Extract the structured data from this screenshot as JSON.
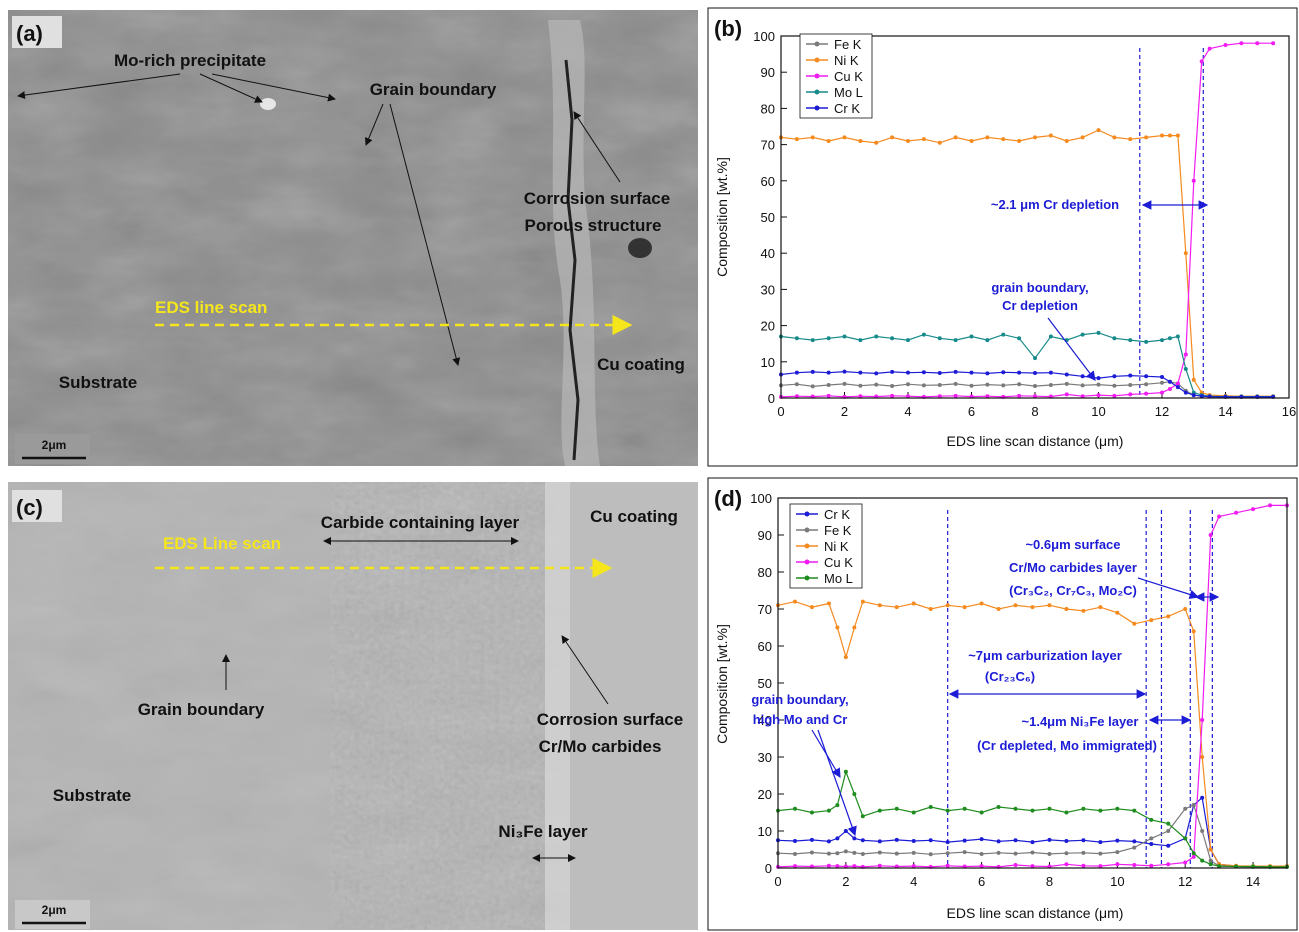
{
  "images": [
    {
      "label": "(a)",
      "annotations": [
        "Mo-rich precipitate",
        "Grain boundary",
        "Corrosion surface",
        "Porous structure",
        "EDS line scan",
        "Cu coating",
        "Substrate"
      ],
      "scale_bar": "2μm"
    },
    {
      "label": "(c)",
      "annotations": [
        "Carbide containing layer",
        "Cu coating",
        "EDS Line scan",
        "Grain boundary",
        "Corrosion surface",
        "Cr/Mo carbides",
        "Substrate",
        "Ni₃Fe layer"
      ],
      "scale_bar": "2μm"
    }
  ],
  "chart_data": [
    {
      "type": "line",
      "panel": "(b)",
      "x_label": "EDS line scan distance (μm)",
      "y_label": "Composition [wt.%]",
      "xlim": [
        0,
        16
      ],
      "xticks": [
        0,
        2,
        4,
        6,
        8,
        10,
        12,
        14,
        16
      ],
      "ylim": [
        0,
        100
      ],
      "yticks": [
        0,
        10,
        20,
        30,
        40,
        50,
        60,
        70,
        80,
        90,
        100
      ],
      "vlines": [
        11.3,
        13.3
      ],
      "annotations": [
        "~2.1 μm Cr depletion",
        "grain boundary,",
        "Cr depletion"
      ],
      "x": [
        0,
        0.5,
        1,
        1.5,
        2,
        2.5,
        3,
        3.5,
        4,
        4.5,
        5,
        5.5,
        6,
        6.5,
        7,
        7.5,
        8,
        8.5,
        9,
        9.5,
        10,
        10.5,
        11,
        11.5,
        12,
        12.25,
        12.5,
        12.75,
        13,
        13.25,
        13.5,
        14,
        14.5,
        15,
        15.5
      ],
      "series": [
        {
          "name": "Fe K",
          "color": "#7a7a7a",
          "values": [
            3.5,
            3.8,
            3.2,
            3.6,
            3.9,
            3.4,
            3.7,
            3.3,
            3.8,
            3.5,
            3.6,
            3.9,
            3.4,
            3.7,
            3.5,
            3.8,
            3.3,
            3.6,
            3.9,
            3.5,
            3.7,
            3.4,
            3.6,
            3.8,
            4.2,
            4.5,
            4,
            2,
            0.8,
            0.5,
            0.4,
            0.3,
            0.3,
            0.3,
            0.3
          ]
        },
        {
          "name": "Ni K",
          "color": "#f58a1f",
          "values": [
            72,
            71.5,
            72,
            71,
            72,
            71,
            70.5,
            72,
            71,
            71.5,
            70.5,
            72,
            71,
            72,
            71.5,
            71,
            72,
            72.5,
            71,
            72,
            74,
            72,
            71.5,
            72,
            72.5,
            72.5,
            72.5,
            40,
            5,
            1.5,
            0.8,
            0.6,
            0.5,
            0.5,
            0.5
          ]
        },
        {
          "name": "Cu K",
          "color": "#f21cf2",
          "values": [
            0.3,
            0.5,
            0.4,
            0.6,
            0.3,
            0.5,
            0.4,
            0.6,
            0.5,
            0.3,
            0.5,
            0.6,
            0.4,
            0.5,
            0.3,
            0.6,
            0.5,
            0.4,
            1,
            0.5,
            0.8,
            0.6,
            1,
            1.2,
            1.5,
            2.5,
            4,
            12,
            60,
            93,
            96.5,
            97.5,
            98,
            98,
            98
          ]
        },
        {
          "name": "Mo L",
          "color": "#178a8a",
          "values": [
            17,
            16.5,
            16,
            16.5,
            17,
            16,
            17,
            16.5,
            16,
            17.5,
            16.5,
            16,
            17,
            16,
            17.5,
            16.5,
            11,
            17,
            16,
            17.5,
            18,
            16.5,
            16,
            15.5,
            16,
            16.5,
            17,
            8,
            1.5,
            0.8,
            0.5,
            0.4,
            0.4,
            0.4,
            0.4
          ]
        },
        {
          "name": "Cr K",
          "color": "#1c1cd6",
          "values": [
            6.5,
            7,
            7.2,
            7,
            7.3,
            7,
            6.8,
            7.2,
            7,
            7.1,
            6.9,
            7.2,
            7,
            6.8,
            7.1,
            7,
            6.9,
            7,
            6.5,
            6,
            5.5,
            6,
            6.2,
            6,
            5.8,
            4.5,
            3,
            1.5,
            0.8,
            0.5,
            0.4,
            0.3,
            0.3,
            0.3,
            0.3
          ]
        }
      ]
    },
    {
      "type": "line",
      "panel": "(d)",
      "x_label": "EDS line scan distance (μm)",
      "y_label": "Composition [wt.%]",
      "xlim": [
        0,
        15
      ],
      "xticks": [
        0,
        2,
        4,
        6,
        8,
        10,
        12,
        14
      ],
      "ylim": [
        0,
        100
      ],
      "yticks": [
        0,
        10,
        20,
        30,
        40,
        50,
        60,
        70,
        80,
        90,
        100
      ],
      "vlines": [
        5,
        10.85,
        11.3,
        12.15,
        12.8
      ],
      "annotations": [
        "~0.6μm surface",
        "Cr/Mo carbides layer",
        "(Cr₃C₂, Cr₇C₃, Mo₂C)",
        "~7μm carburization layer",
        "(Cr₂₃C₆)",
        "grain boundary,",
        "high Mo and Cr",
        "~1.4μm Ni₃Fe layer",
        "(Cr depleted, Mo immigrated)"
      ],
      "x": [
        0,
        0.5,
        1,
        1.5,
        1.75,
        2,
        2.25,
        2.5,
        3,
        3.5,
        4,
        4.5,
        5,
        5.5,
        6,
        6.5,
        7,
        7.5,
        8,
        8.5,
        9,
        9.5,
        10,
        10.5,
        11,
        11.5,
        12,
        12.25,
        12.5,
        12.75,
        13,
        13.5,
        14,
        14.5,
        15
      ],
      "series": [
        {
          "name": "Cr K",
          "color": "#1c1cd6",
          "values": [
            7.5,
            7.3,
            7.6,
            7.2,
            8,
            10,
            8,
            7.5,
            7.2,
            7.6,
            7.3,
            7.5,
            7,
            7.4,
            7.8,
            7.2,
            7.5,
            7,
            7.6,
            7.3,
            7.5,
            7,
            7.4,
            7.2,
            6.5,
            6,
            8,
            17,
            19,
            5,
            1,
            0.5,
            0.4,
            0.4,
            0.4
          ]
        },
        {
          "name": "Fe K",
          "color": "#7a7a7a",
          "values": [
            4,
            3.8,
            4.2,
            3.9,
            4,
            4.5,
            4.1,
            3.8,
            4.2,
            3.9,
            4.1,
            3.7,
            4,
            4.3,
            3.8,
            4.1,
            3.9,
            4.2,
            3.8,
            4,
            4.1,
            3.9,
            4.3,
            5.5,
            8,
            10,
            16,
            17,
            10,
            2,
            0.5,
            0.4,
            0.3,
            0.3,
            0.3
          ]
        },
        {
          "name": "Ni K",
          "color": "#f58a1f",
          "values": [
            71,
            72,
            70.5,
            71.5,
            65,
            57,
            65,
            72,
            71,
            70.5,
            71.5,
            70,
            71,
            70.5,
            71.5,
            70,
            71,
            70.5,
            71,
            70,
            69.5,
            70.5,
            69,
            66,
            67,
            68,
            70,
            64,
            30,
            5,
            1,
            0.6,
            0.5,
            0.5,
            0.5
          ]
        },
        {
          "name": "Cu K",
          "color": "#f21cf2",
          "values": [
            0.3,
            0.5,
            0.4,
            0.6,
            0.5,
            0.4,
            0.5,
            0.3,
            0.6,
            0.4,
            0.5,
            0.3,
            0.6,
            0.4,
            0.5,
            0.3,
            0.8,
            0.5,
            0.4,
            1,
            0.6,
            0.5,
            1,
            0.8,
            0.6,
            1,
            1.5,
            3,
            40,
            90,
            95,
            96,
            97,
            98,
            98
          ]
        },
        {
          "name": "Mo L",
          "color": "#1e8c1e",
          "values": [
            15.5,
            16,
            15,
            15.5,
            17,
            26,
            20,
            14,
            15.5,
            16,
            15,
            16.5,
            15.5,
            16,
            15,
            16.5,
            16,
            15.5,
            16,
            15,
            16,
            15.5,
            16,
            15.5,
            13,
            12,
            8,
            4,
            2,
            1,
            0.5,
            0.4,
            0.4,
            0.3,
            0.3
          ]
        }
      ]
    }
  ]
}
